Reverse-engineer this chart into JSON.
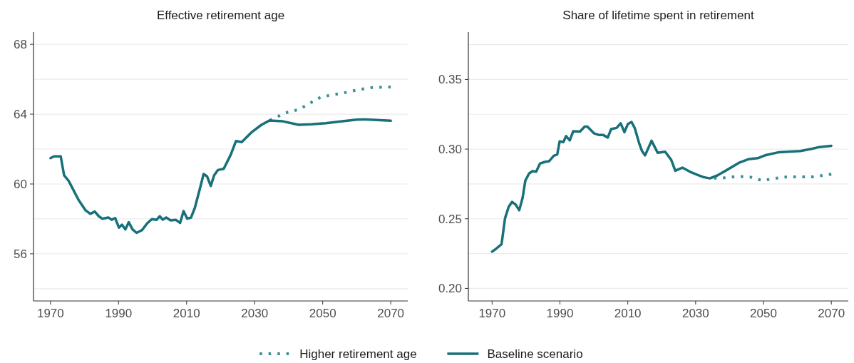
{
  "chart_data": [
    {
      "type": "line",
      "title": "Effective retirement age",
      "legend": "bottom",
      "grid": "y",
      "xlim": [
        1965,
        2075
      ],
      "xticks": [
        1970,
        1990,
        2010,
        2030,
        2050,
        2070
      ],
      "ylim": [
        53.3,
        68.7
      ],
      "yticks": [
        {
          "value": 54,
          "label": null
        },
        56,
        {
          "value": 58,
          "label": null
        },
        60,
        {
          "value": 62,
          "label": null
        },
        64,
        {
          "value": 66,
          "label": null
        },
        68
      ],
      "series": [
        {
          "name": "Higher retirement age",
          "color": "#3b8f96",
          "line_style": "dotted",
          "x": [
            2034,
            2039,
            2043,
            2046,
            2049.5,
            2053,
            2057,
            2061,
            2064.5,
            2068,
            2070
          ],
          "values": [
            63.6,
            64.07,
            64.27,
            64.6,
            64.98,
            65.11,
            65.25,
            65.42,
            65.52,
            65.55,
            65.55
          ]
        },
        {
          "name": "Baseline scenario",
          "color": "#17707a",
          "line_style": "solid",
          "x": [
            1970,
            1971,
            1973,
            1974,
            1975.3,
            1976.4,
            1978.2,
            1978.9,
            1980.3,
            1981.7,
            1983,
            1984.2,
            1985.2,
            1987,
            1988,
            1989,
            1990.1,
            1991,
            1992,
            1993,
            1994.1,
            1995.3,
            1996.9,
            1998.4,
            1999.8,
            2001.2,
            2002.1,
            2003,
            2004,
            2005.3,
            2006.8,
            2008.1,
            2009.1,
            2010.2,
            2011.3,
            2012.4,
            2013.8,
            2015,
            2016,
            2017.1,
            2018.1,
            2019.2,
            2020.9,
            2023,
            2024.5,
            2026.2,
            2029.2,
            2032,
            2034.3,
            2038.3,
            2042.9,
            2046.7,
            2050.9,
            2055.8,
            2060,
            2062.8,
            2070
          ],
          "values": [
            61.48,
            61.58,
            61.58,
            60.49,
            60.19,
            59.78,
            59.1,
            58.9,
            58.49,
            58.29,
            58.42,
            58.15,
            58.01,
            58.08,
            57.95,
            58.05,
            57.5,
            57.67,
            57.4,
            57.81,
            57.4,
            57.2,
            57.36,
            57.74,
            57.99,
            57.95,
            58.15,
            57.95,
            58.08,
            57.92,
            57.95,
            57.77,
            58.45,
            58.01,
            58.08,
            58.62,
            59.65,
            60.57,
            60.44,
            59.89,
            60.5,
            60.8,
            60.87,
            61.69,
            62.46,
            62.4,
            62.98,
            63.39,
            63.63,
            63.59,
            63.39,
            63.42,
            63.48,
            63.59,
            63.69,
            63.7,
            63.62
          ]
        }
      ]
    },
    {
      "type": "line",
      "title": "Share of lifetime spent in retirement",
      "grid": "y",
      "xlim": [
        1963,
        2075
      ],
      "xticks": [
        1970,
        1990,
        2010,
        2030,
        2050,
        2070
      ],
      "ylim": [
        0.191,
        0.384
      ],
      "yticks": [
        {
          "value": 0.2,
          "label": "0.20"
        },
        {
          "value": 0.225,
          "label": null
        },
        0.25,
        {
          "value": 0.275,
          "label": null
        },
        {
          "value": 0.3,
          "label": "0.30"
        },
        {
          "value": 0.325,
          "label": null
        },
        0.35,
        {
          "value": 0.375,
          "label": null
        }
      ],
      "series": [
        {
          "color": "#3b8f96",
          "line_style": "dotted",
          "x": [
            2034,
            2038.4,
            2042.3,
            2046,
            2049.7,
            2053.4,
            2057.2,
            2061,
            2064.6,
            2068.8,
            2070
          ],
          "values": [
            0.279,
            0.2794,
            0.2804,
            0.28,
            0.2774,
            0.279,
            0.2801,
            0.2801,
            0.2801,
            0.2816,
            0.282
          ]
        },
        {
          "color": "#17707a",
          "line_style": "solid",
          "x": [
            1970,
            1971,
            1972.8,
            1973.8,
            1974.9,
            1975.9,
            1977,
            1978,
            1979,
            1979.8,
            1980.9,
            1981.9,
            1983,
            1984.1,
            1985.4,
            1986.8,
            1988.2,
            1989.2,
            1989.9,
            1991,
            1991.8,
            1992.9,
            1993.9,
            1995.9,
            1997.3,
            1998.1,
            2000,
            2001.4,
            2002.8,
            2004.1,
            2005.1,
            2006.7,
            2007.9,
            2009,
            2010,
            2011.1,
            2012.1,
            2013.3,
            2014.2,
            2015.1,
            2017,
            2018.8,
            2021,
            2022.8,
            2024,
            2026.1,
            2028.7,
            2030.5,
            2032.3,
            2034.2,
            2036.4,
            2039.2,
            2042.7,
            2045.5,
            2048.3,
            2050.7,
            2054.6,
            2060.9,
            2064.4,
            2066.5,
            2070
          ],
          "values": [
            0.2264,
            0.2281,
            0.2318,
            0.2502,
            0.2587,
            0.2621,
            0.26,
            0.2561,
            0.2651,
            0.2774,
            0.2825,
            0.2842,
            0.2838,
            0.2896,
            0.2907,
            0.2913,
            0.2952,
            0.2961,
            0.3055,
            0.305,
            0.3093,
            0.3063,
            0.3128,
            0.3126,
            0.3162,
            0.3162,
            0.3114,
            0.3102,
            0.3101,
            0.3083,
            0.3144,
            0.3152,
            0.3185,
            0.3121,
            0.3179,
            0.3195,
            0.3148,
            0.3046,
            0.2986,
            0.2955,
            0.306,
            0.2974,
            0.2981,
            0.2923,
            0.2845,
            0.2867,
            0.2833,
            0.2816,
            0.2799,
            0.279,
            0.2811,
            0.285,
            0.2901,
            0.2927,
            0.2935,
            0.2957,
            0.2978,
            0.2986,
            0.3003,
            0.3015,
            0.3024
          ]
        }
      ]
    }
  ]
}
